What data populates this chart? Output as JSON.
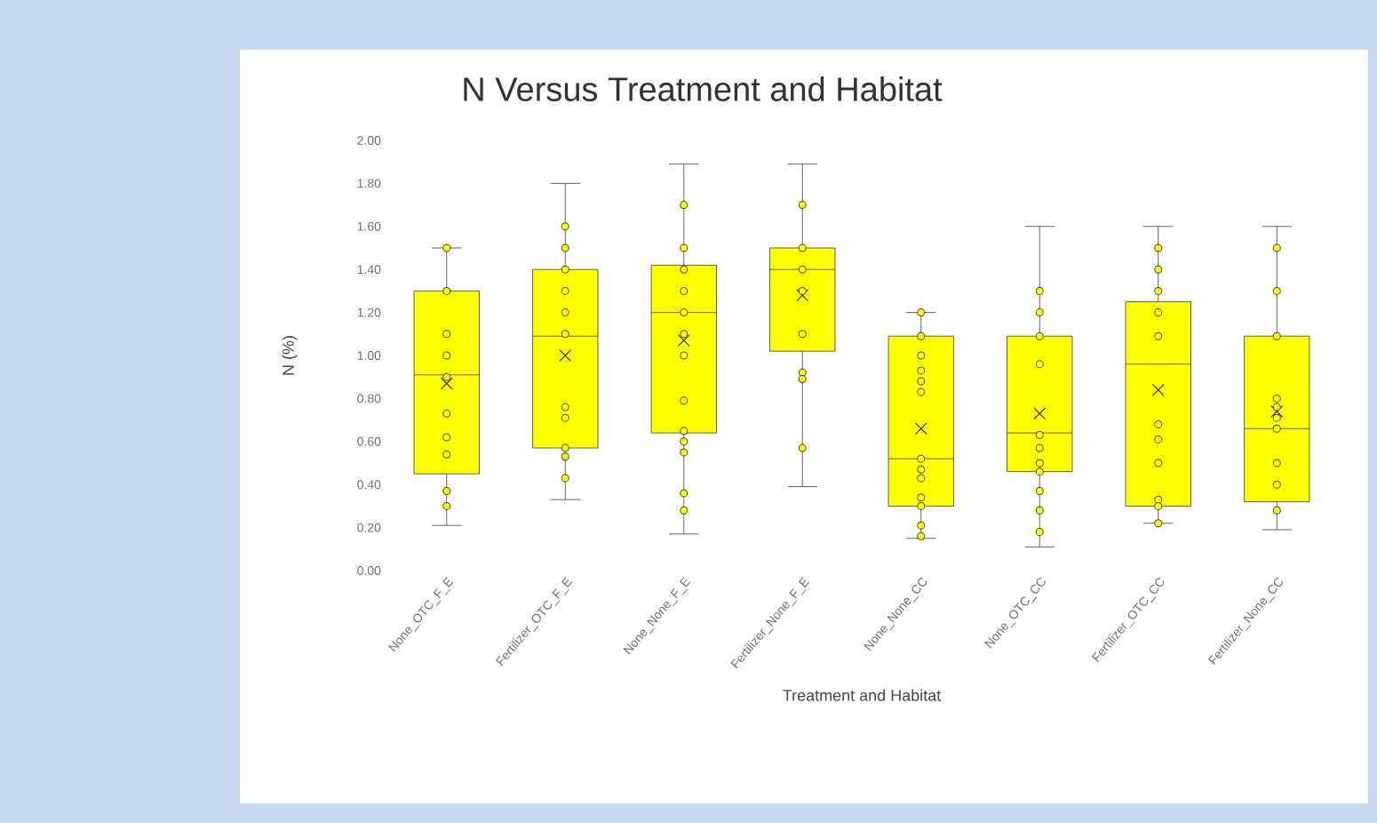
{
  "chart_data": {
    "type": "box",
    "title": "N Versus Treatment and Habitat",
    "xlabel": "Treatment and Habitat",
    "ylabel": "N (%)",
    "categories": [
      "None_OTC_F_E",
      "Fertilizer_OTC_F_E",
      "None_None_F_E",
      "Fertilizer_None_F_E",
      "None_None_CC",
      "None_OTC_CC",
      "Fertilizer_OTC_CC",
      "Fertilizer_None_CC"
    ],
    "ylim": [
      0,
      2
    ],
    "yticks": [
      {
        "value": 0,
        "label": "0.00"
      },
      {
        "value": 0.2,
        "label": "0.20"
      },
      {
        "value": 0.4,
        "label": "0.40"
      },
      {
        "value": 0.6,
        "label": "0.60"
      },
      {
        "value": 0.8,
        "label": "0.80"
      },
      {
        "value": 1.0,
        "label": "1.00"
      },
      {
        "value": 1.2,
        "label": "1.20"
      },
      {
        "value": 1.4,
        "label": "1.40"
      },
      {
        "value": 1.6,
        "label": "1.60"
      },
      {
        "value": 1.8,
        "label": "1.80"
      },
      {
        "value": 2.0,
        "label": "2.00"
      }
    ],
    "series": [
      {
        "type": "box",
        "color": "#ffff00",
        "boxes": [
          {
            "low": 0.21,
            "q1": 0.45,
            "median": 0.91,
            "q3": 1.3,
            "high": 1.5,
            "mean": 0.87
          },
          {
            "low": 0.33,
            "q1": 0.57,
            "median": 1.09,
            "q3": 1.4,
            "high": 1.8,
            "mean": 1.0
          },
          {
            "low": 0.17,
            "q1": 0.64,
            "median": 1.2,
            "q3": 1.42,
            "high": 1.89,
            "mean": 1.07
          },
          {
            "low": 0.39,
            "q1": 1.02,
            "median": 1.4,
            "q3": 1.5,
            "high": 1.89,
            "mean": 1.28
          },
          {
            "low": 0.15,
            "q1": 0.3,
            "median": 0.52,
            "q3": 1.09,
            "high": 1.2,
            "mean": 0.66
          },
          {
            "low": 0.11,
            "q1": 0.46,
            "median": 0.64,
            "q3": 1.09,
            "high": 1.6,
            "mean": 0.73
          },
          {
            "low": 0.22,
            "q1": 0.3,
            "median": 0.96,
            "q3": 1.25,
            "high": 1.6,
            "mean": 0.84
          },
          {
            "low": 0.19,
            "q1": 0.32,
            "median": 0.66,
            "q3": 1.09,
            "high": 1.6,
            "mean": 0.74
          }
        ]
      },
      {
        "type": "scatter",
        "color": "#ffff00",
        "x": [
          "None_OTC_F_E",
          "None_OTC_F_E",
          "None_OTC_F_E",
          "None_OTC_F_E",
          "None_OTC_F_E",
          "None_OTC_F_E",
          "None_OTC_F_E",
          "None_OTC_F_E",
          "None_OTC_F_E",
          "None_OTC_F_E",
          "Fertilizer_OTC_F_E",
          "Fertilizer_OTC_F_E",
          "Fertilizer_OTC_F_E",
          "Fertilizer_OTC_F_E",
          "Fertilizer_OTC_F_E",
          "Fertilizer_OTC_F_E",
          "Fertilizer_OTC_F_E",
          "Fertilizer_OTC_F_E",
          "Fertilizer_OTC_F_E",
          "Fertilizer_OTC_F_E",
          "Fertilizer_OTC_F_E",
          "Fertilizer_OTC_F_E",
          "None_None_F_E",
          "None_None_F_E",
          "None_None_F_E",
          "None_None_F_E",
          "None_None_F_E",
          "None_None_F_E",
          "None_None_F_E",
          "None_None_F_E",
          "None_None_F_E",
          "None_None_F_E",
          "None_None_F_E",
          "None_None_F_E",
          "None_None_F_E",
          "Fertilizer_None_F_E",
          "Fertilizer_None_F_E",
          "Fertilizer_None_F_E",
          "Fertilizer_None_F_E",
          "Fertilizer_None_F_E",
          "Fertilizer_None_F_E",
          "Fertilizer_None_F_E",
          "Fertilizer_None_F_E",
          "None_None_CC",
          "None_None_CC",
          "None_None_CC",
          "None_None_CC",
          "None_None_CC",
          "None_None_CC",
          "None_None_CC",
          "None_None_CC",
          "None_None_CC",
          "None_None_CC",
          "None_None_CC",
          "None_None_CC",
          "None_None_CC",
          "None_OTC_CC",
          "None_OTC_CC",
          "None_OTC_CC",
          "None_OTC_CC",
          "None_OTC_CC",
          "None_OTC_CC",
          "None_OTC_CC",
          "None_OTC_CC",
          "None_OTC_CC",
          "None_OTC_CC",
          "None_OTC_CC",
          "None_OTC_CC",
          "Fertilizer_OTC_CC",
          "Fertilizer_OTC_CC",
          "Fertilizer_OTC_CC",
          "Fertilizer_OTC_CC",
          "Fertilizer_OTC_CC",
          "Fertilizer_OTC_CC",
          "Fertilizer_OTC_CC",
          "Fertilizer_OTC_CC",
          "Fertilizer_OTC_CC",
          "Fertilizer_OTC_CC",
          "Fertilizer_OTC_CC",
          "Fertilizer_None_CC",
          "Fertilizer_None_CC",
          "Fertilizer_None_CC",
          "Fertilizer_None_CC",
          "Fertilizer_None_CC",
          "Fertilizer_None_CC",
          "Fertilizer_None_CC",
          "Fertilizer_None_CC",
          "Fertilizer_None_CC",
          "Fertilizer_None_CC"
        ],
        "values": [
          1.5,
          1.3,
          1.1,
          1.0,
          0.9,
          0.73,
          0.62,
          0.54,
          0.37,
          0.3,
          1.6,
          1.5,
          1.4,
          1.3,
          1.2,
          1.1,
          null,
          0.76,
          0.71,
          0.57,
          0.53,
          0.43,
          1.7,
          1.5,
          1.4,
          1.3,
          1.2,
          1.1,
          1.0,
          0.79,
          0.65,
          0.6,
          0.55,
          0.36,
          0.28,
          1.7,
          1.5,
          1.4,
          1.3,
          1.1,
          0.92,
          0.89,
          0.57,
          1.2,
          1.09,
          1.0,
          0.93,
          0.88,
          0.83,
          0.52,
          0.47,
          0.43,
          0.34,
          0.3,
          0.21,
          0.16,
          1.3,
          1.2,
          1.09,
          0.96,
          null,
          0.63,
          0.57,
          0.5,
          0.46,
          0.37,
          0.28,
          0.18,
          1.5,
          1.4,
          1.3,
          1.2,
          1.09,
          0.68,
          0.61,
          0.5,
          0.33,
          0.3,
          0.22,
          1.5,
          1.3,
          1.09,
          0.8,
          0.76,
          0.71,
          0.66,
          0.5,
          0.4,
          0.28
        ]
      }
    ]
  }
}
